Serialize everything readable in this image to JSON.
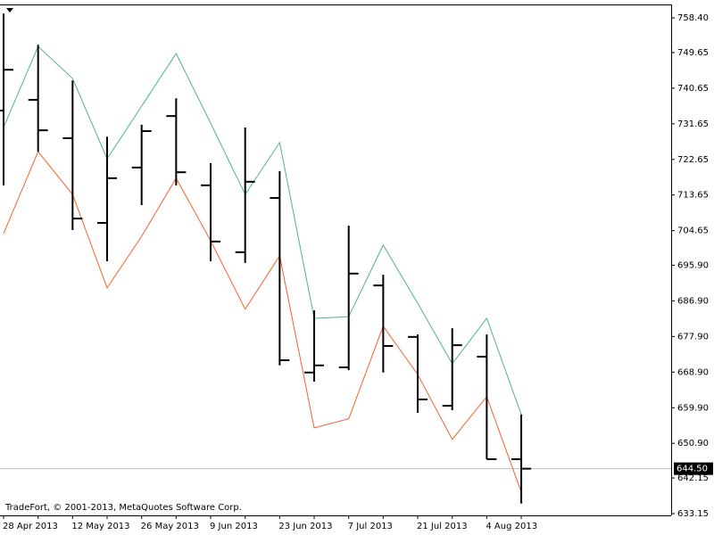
{
  "chart_data": {
    "type": "ohlc",
    "watermark": "TradeFort, © 2001-2013, MetaQuotes Software Corp.",
    "categories": [
      "28 Apr 2013",
      null,
      "12 May 2013",
      null,
      "26 May 2013",
      null,
      "9 Jun 2013",
      null,
      "23 Jun 2013",
      null,
      "7 Jul 2013",
      null,
      "21 Jul 2013",
      null,
      "4 Aug 2013",
      null
    ],
    "open": [
      735.0,
      737.7,
      728.0,
      706.6,
      720.6,
      733.6,
      716.1,
      699.2,
      712.9,
      668.8,
      670.1,
      690.8,
      677.8,
      660.4,
      672.8,
      646.9
    ],
    "high": [
      759.5,
      751.6,
      742.6,
      728.4,
      731.4,
      738.1,
      721.7,
      730.7,
      719.7,
      684.5,
      705.9,
      693.5,
      678.4,
      680.0,
      678.4,
      658.2
    ],
    "low": [
      716.1,
      724.6,
      704.8,
      696.9,
      711.1,
      716.1,
      696.9,
      696.5,
      670.6,
      666.5,
      669.4,
      668.8,
      658.6,
      659.3,
      646.9,
      635.7
    ],
    "close": [
      745.3,
      730.0,
      707.7,
      717.9,
      729.8,
      719.4,
      701.9,
      717.0,
      671.9,
      670.6,
      693.8,
      675.5,
      662.0,
      675.7,
      646.9,
      644.5
    ],
    "bar_color": "#000000",
    "lines": [
      {
        "color": "#4fb38a",
        "values": [
          730.7,
          751.2,
          743.1,
          722.8,
          736.1,
          749.4,
          731.8,
          713.8,
          726.9,
          682.5,
          682.9,
          701.0,
          686.3,
          671.0,
          682.5,
          658.2
        ]
      },
      {
        "color": "#f5602a",
        "values": [
          703.9,
          724.6,
          713.8,
          690.2,
          703.2,
          717.9,
          702.1,
          684.8,
          698.3,
          654.8,
          657.1,
          680.5,
          668.3,
          651.9,
          662.7,
          638.6
        ]
      }
    ],
    "last_price": {
      "value": 644.5,
      "label": "644.50"
    },
    "ylim": [
      632.7,
      761.8
    ],
    "yticks": [
      {
        "value": 758.4,
        "label": "758.40"
      },
      {
        "value": 749.65,
        "label": "749.65"
      },
      {
        "value": 740.65,
        "label": "740.65"
      },
      {
        "value": 731.65,
        "label": "731.65"
      },
      {
        "value": 722.65,
        "label": "722.65"
      },
      {
        "value": 713.65,
        "label": "713.65"
      },
      {
        "value": 704.65,
        "label": "704.65"
      },
      {
        "value": 695.9,
        "label": "695.90"
      },
      {
        "value": 686.9,
        "label": "686.90"
      },
      {
        "value": 677.9,
        "label": "677.90"
      },
      {
        "value": 668.9,
        "label": "668.90"
      },
      {
        "value": 659.9,
        "label": "659.90"
      },
      {
        "value": 650.9,
        "label": "650.90"
      },
      {
        "value": 642.15,
        "label": "642.15"
      },
      {
        "value": 633.15,
        "label": "633.15"
      }
    ]
  }
}
